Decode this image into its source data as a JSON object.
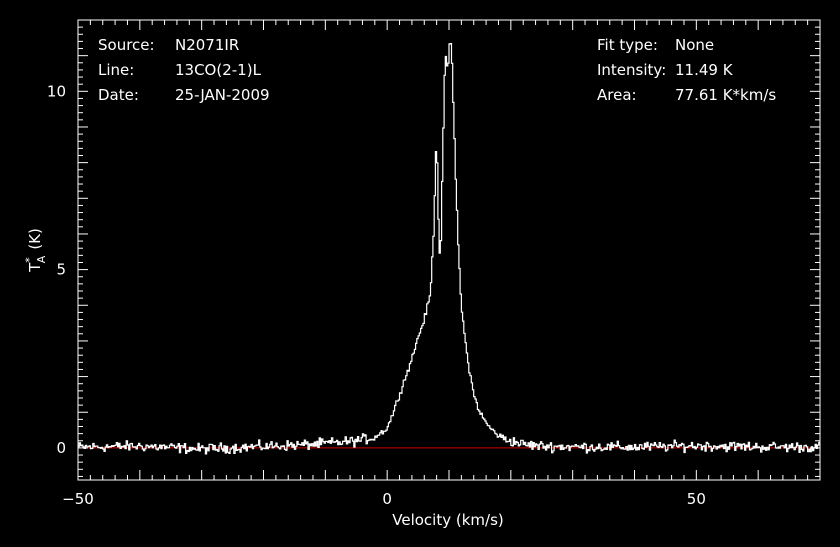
{
  "header": {
    "left": [
      {
        "label": "Source:",
        "value": "N2071IR"
      },
      {
        "label": "Line:",
        "value": "13CO(2-1)L"
      },
      {
        "label": "Date:",
        "value": "25-JAN-2009"
      }
    ],
    "right": [
      {
        "label": "Fit type:",
        "value": "None"
      },
      {
        "label": "Intensity:",
        "value": "11.49 K"
      },
      {
        "label": "Area:",
        "value": "77.61 K*km/s"
      }
    ]
  },
  "colors": {
    "background": "#000000",
    "axes": "#ffffff",
    "spectrum": "#ffffff",
    "baseline": "#cc0000"
  },
  "chart_data": {
    "type": "line",
    "xlabel": "Velocity (km/s)",
    "ylabel": "T*A (K)",
    "ylabel_main": "T",
    "ylabel_super": "*",
    "ylabel_sub": "A",
    "ylabel_unit": "(K)",
    "xlim": [
      -50,
      70
    ],
    "ylim": [
      -0.9,
      12.0
    ],
    "xticks_major": [
      -50,
      0,
      50
    ],
    "xticks_labels": [
      "−50",
      "0",
      "50"
    ],
    "yticks_major": [
      0,
      5,
      10
    ],
    "yticks_labels": [
      "0",
      "5",
      "10"
    ],
    "grid": false,
    "baseline": {
      "y": 0.0,
      "color": "#cc0000"
    },
    "series": [
      {
        "name": "",
        "x": [
          -50,
          -40,
          -30,
          -20,
          -12,
          -8,
          -5,
          -2,
          0,
          1,
          2,
          3,
          4,
          5,
          6,
          7,
          7.5,
          8,
          8.3,
          8.6,
          9,
          9.4,
          9.8,
          10.2,
          10.5,
          10.8,
          11.2,
          11.6,
          12,
          12.5,
          13,
          14,
          15,
          16,
          17,
          18,
          19,
          20,
          22,
          25,
          30,
          40,
          50,
          60,
          70
        ],
        "y": [
          0.02,
          0.05,
          -0.03,
          0.04,
          0.1,
          0.15,
          0.2,
          0.3,
          0.55,
          1.0,
          1.5,
          2.0,
          2.5,
          3.1,
          3.6,
          4.3,
          6.0,
          8.8,
          6.5,
          5.0,
          8.3,
          11.2,
          10.5,
          11.49,
          10.8,
          9.2,
          7.0,
          5.3,
          4.0,
          3.2,
          2.5,
          1.5,
          1.0,
          0.7,
          0.5,
          0.35,
          0.25,
          0.2,
          0.1,
          0.05,
          0.03,
          0.02,
          0.06,
          0.03,
          0.02
        ],
        "noise_rms": 0.07
      }
    ]
  }
}
